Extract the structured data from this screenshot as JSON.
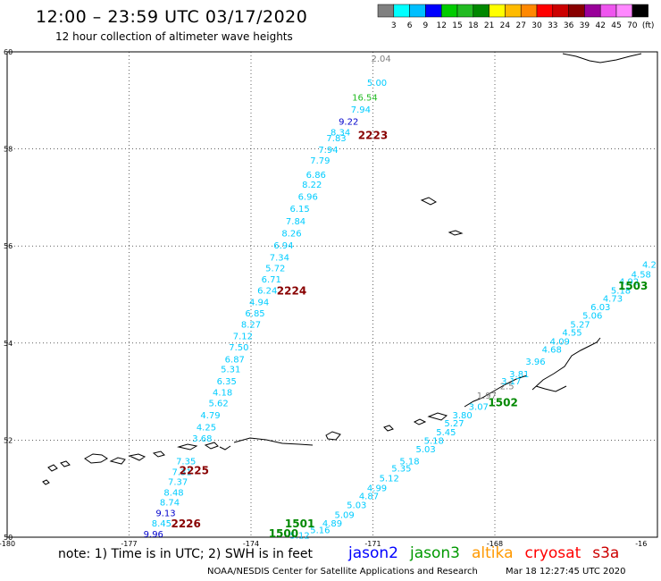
{
  "title": "12:00 – 23:59 UTC 03/17/2020",
  "subtitle": "12 hour collection of altimeter wave heights",
  "colorscale": {
    "colors": [
      "#808080",
      "#00ffff",
      "#00bfff",
      "#0000ff",
      "#00cc00",
      "#22bb22",
      "#008800",
      "#ffff00",
      "#ffbb00",
      "#ff8800",
      "#ff0000",
      "#cc0000",
      "#880000",
      "#990099",
      "#ee55ee",
      "#ff88ff",
      "#000000"
    ],
    "labels": [
      "3",
      "6",
      "9",
      "12",
      "15",
      "18",
      "21",
      "24",
      "27",
      "30",
      "33",
      "36",
      "39",
      "42",
      "45",
      "70",
      "(ft)"
    ]
  },
  "axes": {
    "lat_ticks": [
      "60",
      "58",
      "56",
      "54",
      "52",
      "50"
    ],
    "lon_ticks": [
      "-180",
      "-177",
      "-174",
      "-171",
      "-168",
      "-16"
    ]
  },
  "chart_data": {
    "type": "scatter",
    "x_axis": "longitude",
    "y_axis": "latitude",
    "pass_labels": [
      {
        "label": "2223",
        "lon": -171.0,
        "lat": 58.2,
        "color": "#880000"
      },
      {
        "label": "2224",
        "lon": -173.0,
        "lat": 55.0,
        "color": "#880000"
      },
      {
        "label": "2225",
        "lon": -175.4,
        "lat": 51.3,
        "color": "#880000"
      },
      {
        "label": "2226",
        "lon": -175.6,
        "lat": 50.2,
        "color": "#880000"
      },
      {
        "label": "1503",
        "lon": -164.6,
        "lat": 55.1,
        "color": "#008800"
      },
      {
        "label": "1502",
        "lon": -167.8,
        "lat": 52.7,
        "color": "#008800"
      },
      {
        "label": "1501",
        "lon": -172.8,
        "lat": 50.2,
        "color": "#008800"
      },
      {
        "label": "1500",
        "lon": -173.2,
        "lat": 50.0,
        "color": "#008800"
      }
    ],
    "tracks": [
      {
        "points": [
          {
            "v": "2.04",
            "lon": -170.8,
            "lat": 59.8,
            "color": "#808080"
          },
          {
            "v": "5.00",
            "lon": -170.9,
            "lat": 59.3,
            "color": "#00ccff"
          },
          {
            "v": "16.54",
            "lon": -171.2,
            "lat": 59.0,
            "color": "#22bb22"
          },
          {
            "v": "7.94",
            "lon": -171.3,
            "lat": 58.75,
            "color": "#00ccff"
          },
          {
            "v": "9.22",
            "lon": -171.6,
            "lat": 58.5,
            "color": "#0000cc"
          },
          {
            "v": "8.34",
            "lon": -171.8,
            "lat": 58.28,
            "color": "#00ccff"
          },
          {
            "v": "7.83",
            "lon": -171.9,
            "lat": 58.16,
            "color": "#00ccff"
          },
          {
            "v": "7.94",
            "lon": -172.1,
            "lat": 57.92,
            "color": "#00ccff"
          },
          {
            "v": "7.79",
            "lon": -172.3,
            "lat": 57.7,
            "color": "#00ccff"
          },
          {
            "v": "6.86",
            "lon": -172.4,
            "lat": 57.4,
            "color": "#00ccff"
          },
          {
            "v": "8.22",
            "lon": -172.5,
            "lat": 57.2,
            "color": "#00ccff"
          },
          {
            "v": "6.96",
            "lon": -172.6,
            "lat": 56.95,
            "color": "#00ccff"
          },
          {
            "v": "6.15",
            "lon": -172.8,
            "lat": 56.7,
            "color": "#00ccff"
          },
          {
            "v": "7.84",
            "lon": -172.9,
            "lat": 56.45,
            "color": "#00ccff"
          },
          {
            "v": "8.26",
            "lon": -173.0,
            "lat": 56.2,
            "color": "#00ccff"
          },
          {
            "v": "6.94",
            "lon": -173.2,
            "lat": 55.95,
            "color": "#00ccff"
          },
          {
            "v": "7.34",
            "lon": -173.3,
            "lat": 55.7,
            "color": "#00ccff"
          },
          {
            "v": "5.72",
            "lon": -173.4,
            "lat": 55.48,
            "color": "#00ccff"
          },
          {
            "v": "6.71",
            "lon": -173.5,
            "lat": 55.25,
            "color": "#00ccff"
          },
          {
            "v": "6.24",
            "lon": -173.6,
            "lat": 55.02,
            "color": "#00ccff"
          },
          {
            "v": "4.94",
            "lon": -173.8,
            "lat": 54.78,
            "color": "#00ccff"
          },
          {
            "v": "6.85",
            "lon": -173.9,
            "lat": 54.55,
            "color": "#00ccff"
          },
          {
            "v": "8.27",
            "lon": -174.0,
            "lat": 54.32,
            "color": "#00ccff"
          },
          {
            "v": "7.12",
            "lon": -174.2,
            "lat": 54.08,
            "color": "#00ccff"
          },
          {
            "v": "7.50",
            "lon": -174.3,
            "lat": 53.85,
            "color": "#00ccff"
          },
          {
            "v": "6.87",
            "lon": -174.4,
            "lat": 53.6,
            "color": "#00ccff"
          },
          {
            "v": "5.31",
            "lon": -174.5,
            "lat": 53.4,
            "color": "#00ccff"
          },
          {
            "v": "6.35",
            "lon": -174.6,
            "lat": 53.15,
            "color": "#00ccff"
          },
          {
            "v": "4.18",
            "lon": -174.7,
            "lat": 52.92,
            "color": "#00ccff"
          },
          {
            "v": "5.62",
            "lon": -174.8,
            "lat": 52.7,
            "color": "#00ccff"
          },
          {
            "v": "4.79",
            "lon": -175.0,
            "lat": 52.45,
            "color": "#00ccff"
          },
          {
            "v": "4.25",
            "lon": -175.1,
            "lat": 52.2,
            "color": "#00ccff"
          },
          {
            "v": "3.68",
            "lon": -175.2,
            "lat": 51.97,
            "color": "#00ccff"
          },
          {
            "v": "7.35",
            "lon": -175.6,
            "lat": 51.5,
            "color": "#00ccff"
          },
          {
            "v": "7.31",
            "lon": -175.7,
            "lat": 51.28,
            "color": "#00ccff"
          },
          {
            "v": "7.37",
            "lon": -175.8,
            "lat": 51.08,
            "color": "#00ccff"
          },
          {
            "v": "8.48",
            "lon": -175.9,
            "lat": 50.86,
            "color": "#00ccff"
          },
          {
            "v": "8.74",
            "lon": -176.0,
            "lat": 50.65,
            "color": "#00ccff"
          },
          {
            "v": "9.13",
            "lon": -176.1,
            "lat": 50.43,
            "color": "#0000cc"
          },
          {
            "v": "8.45",
            "lon": -176.2,
            "lat": 50.22,
            "color": "#00ccff"
          },
          {
            "v": "9.96",
            "lon": -176.4,
            "lat": 50.0,
            "color": "#0000cc"
          }
        ]
      },
      {
        "points": [
          {
            "v": "2.5",
            "lon": -167.7,
            "lat": 53.05,
            "color": "#808080"
          },
          {
            "v": "1.97",
            "lon": -168.2,
            "lat": 52.85,
            "color": "#808080"
          },
          {
            "v": "4.2",
            "lon": -164.2,
            "lat": 55.55,
            "color": "#00ccff"
          },
          {
            "v": "4.58",
            "lon": -164.4,
            "lat": 55.35,
            "color": "#00ccff"
          },
          {
            "v": "4.92",
            "lon": -164.7,
            "lat": 55.2,
            "color": "#00ccff"
          },
          {
            "v": "5.18",
            "lon": -164.9,
            "lat": 55.02,
            "color": "#00ccff"
          },
          {
            "v": "4.73",
            "lon": -165.1,
            "lat": 54.85,
            "color": "#00ccff"
          },
          {
            "v": "6.03",
            "lon": -165.4,
            "lat": 54.68,
            "color": "#00ccff"
          },
          {
            "v": "5.06",
            "lon": -165.6,
            "lat": 54.5,
            "color": "#00ccff"
          },
          {
            "v": "5.27",
            "lon": -165.9,
            "lat": 54.32,
            "color": "#00ccff"
          },
          {
            "v": "4.55",
            "lon": -166.1,
            "lat": 54.15,
            "color": "#00ccff"
          },
          {
            "v": "4.09",
            "lon": -166.4,
            "lat": 53.97,
            "color": "#00ccff"
          },
          {
            "v": "4.68",
            "lon": -166.6,
            "lat": 53.8,
            "color": "#00ccff"
          },
          {
            "v": "3.96",
            "lon": -167.0,
            "lat": 53.55,
            "color": "#00ccff"
          },
          {
            "v": "3.81",
            "lon": -167.4,
            "lat": 53.3,
            "color": "#00ccff"
          },
          {
            "v": "3.17",
            "lon": -167.6,
            "lat": 53.15,
            "color": "#00ccff"
          },
          {
            "v": "3.07",
            "lon": -168.4,
            "lat": 52.62,
            "color": "#00ccff"
          },
          {
            "v": "3.80",
            "lon": -168.8,
            "lat": 52.45,
            "color": "#00ccff"
          },
          {
            "v": "5.27",
            "lon": -169.0,
            "lat": 52.28,
            "color": "#00ccff"
          },
          {
            "v": "5.45",
            "lon": -169.2,
            "lat": 52.1,
            "color": "#00ccff"
          },
          {
            "v": "5.18",
            "lon": -169.5,
            "lat": 51.92,
            "color": "#00ccff"
          },
          {
            "v": "5.03",
            "lon": -169.7,
            "lat": 51.75,
            "color": "#00ccff"
          },
          {
            "v": "5.18",
            "lon": -170.1,
            "lat": 51.5,
            "color": "#00ccff"
          },
          {
            "v": "5.35",
            "lon": -170.3,
            "lat": 51.35,
            "color": "#00ccff"
          },
          {
            "v": "5.12",
            "lon": -170.6,
            "lat": 51.15,
            "color": "#00ccff"
          },
          {
            "v": "4.99",
            "lon": -170.9,
            "lat": 50.95,
            "color": "#00ccff"
          },
          {
            "v": "4.87",
            "lon": -171.1,
            "lat": 50.78,
            "color": "#00ccff"
          },
          {
            "v": "5.03",
            "lon": -171.4,
            "lat": 50.6,
            "color": "#00ccff"
          },
          {
            "v": "5.09",
            "lon": -171.7,
            "lat": 50.4,
            "color": "#00ccff"
          },
          {
            "v": "4.89",
            "lon": -172.0,
            "lat": 50.22,
            "color": "#00ccff"
          },
          {
            "v": "5.16",
            "lon": -172.3,
            "lat": 50.08,
            "color": "#00ccff"
          },
          {
            "v": "5.12",
            "lon": -172.8,
            "lat": 49.97,
            "color": "#00ccff"
          }
        ]
      }
    ]
  },
  "note": "note: 1) Time is in UTC; 2) SWH is in feet",
  "legend": [
    {
      "name": "jason2",
      "color": "#0000ff"
    },
    {
      "name": "jason3",
      "color": "#009900"
    },
    {
      "name": "altika",
      "color": "#ff9900"
    },
    {
      "name": "cryosat",
      "color": "#ff0000"
    },
    {
      "name": "s3a",
      "color": "#cc0000"
    }
  ],
  "credit": "NOAA/NESDIS Center for Satellite Applications and Research",
  "timestamp": "Mar 18 12:27:45 UTC 2020"
}
